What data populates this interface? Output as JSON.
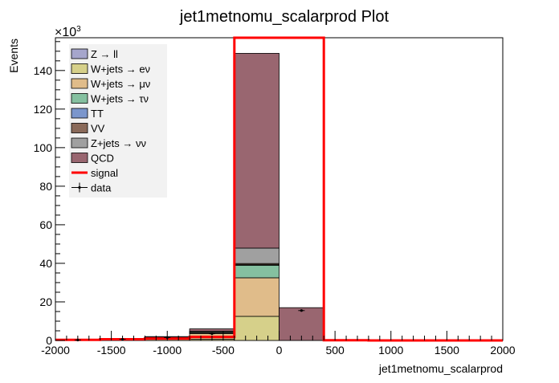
{
  "chart_data": {
    "type": "bar",
    "stacked": true,
    "title": "jet1metnomu_scalarprod Plot",
    "xlabel": "jet1metnomu_scalarprod",
    "ylabel": "Events",
    "y_exponent_label": "×10",
    "y_exponent_power": "3",
    "xlim": [
      -2000,
      2000
    ],
    "ylim": [
      0,
      157000
    ],
    "grid": false,
    "legend_placement": "top-left",
    "x_ticks": [
      -2000,
      -1500,
      -1000,
      -500,
      0,
      500,
      1000,
      1500,
      2000
    ],
    "x_tick_labels": [
      "-2000",
      "-1500",
      "-1000",
      "-500",
      "0",
      "500",
      "1000",
      "1500",
      "2000"
    ],
    "y_ticks": [
      0,
      20000,
      40000,
      60000,
      80000,
      100000,
      120000,
      140000
    ],
    "y_tick_labels": [
      "0",
      "20",
      "40",
      "60",
      "80",
      "100",
      "120",
      "140"
    ],
    "bin_edges": [
      -2000,
      -1600,
      -1200,
      -800,
      -400,
      0,
      400,
      800,
      1200,
      1600,
      2000
    ],
    "series": [
      {
        "name": "Z → ll",
        "color": "#a6a6cc",
        "values": [
          0,
          0,
          0,
          0,
          0,
          0,
          0,
          0,
          0,
          0
        ]
      },
      {
        "name": "W+jets → eν",
        "color": "#d6d08a",
        "values": [
          0,
          0,
          0,
          600,
          12500,
          0,
          0,
          0,
          0,
          0
        ]
      },
      {
        "name": "W+jets → μν",
        "color": "#e0bc8a",
        "values": [
          200,
          400,
          900,
          3000,
          20000,
          0,
          0,
          0,
          0,
          0
        ]
      },
      {
        "name": "W+jets → τν",
        "color": "#85c0a0",
        "values": [
          0,
          0,
          200,
          500,
          6500,
          0,
          0,
          0,
          0,
          0
        ]
      },
      {
        "name": "TT",
        "color": "#7b96cc",
        "values": [
          0,
          0,
          0,
          100,
          300,
          0,
          0,
          0,
          0,
          0
        ]
      },
      {
        "name": "VV",
        "color": "#8a6a5a",
        "values": [
          0,
          0,
          0,
          100,
          600,
          0,
          0,
          0,
          0,
          0
        ]
      },
      {
        "name": "Z+jets → νν",
        "color": "#a0a0a0",
        "values": [
          100,
          200,
          500,
          500,
          8000,
          0,
          0,
          0,
          0,
          0
        ]
      },
      {
        "name": "QCD",
        "color": "#996670",
        "values": [
          200,
          400,
          400,
          1200,
          101000,
          17000,
          0,
          0,
          0,
          0
        ]
      }
    ],
    "signal": {
      "name": "signal",
      "color": "#ff0000",
      "values": [
        300,
        600,
        1000,
        1800,
        157000,
        157000,
        100,
        0,
        0,
        0
      ]
    },
    "data": {
      "name": "data",
      "x": [
        -1800,
        -1400,
        -1000,
        -600,
        200
      ],
      "y": [
        200,
        600,
        1500,
        3500,
        15500
      ]
    }
  }
}
